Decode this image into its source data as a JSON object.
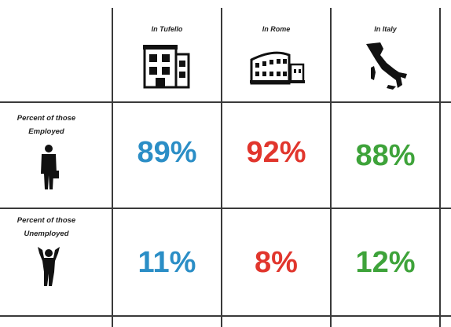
{
  "table": {
    "columns": [
      "In Tufello",
      "In Rome",
      "In Italy"
    ],
    "rows": [
      {
        "label": [
          "Percent of those",
          "Employed"
        ],
        "values": [
          "89%",
          "92%",
          "88%"
        ]
      },
      {
        "label": [
          "Percent of those",
          "Unemployed"
        ],
        "values": [
          "11%",
          "8%",
          "12%"
        ]
      }
    ]
  }
}
